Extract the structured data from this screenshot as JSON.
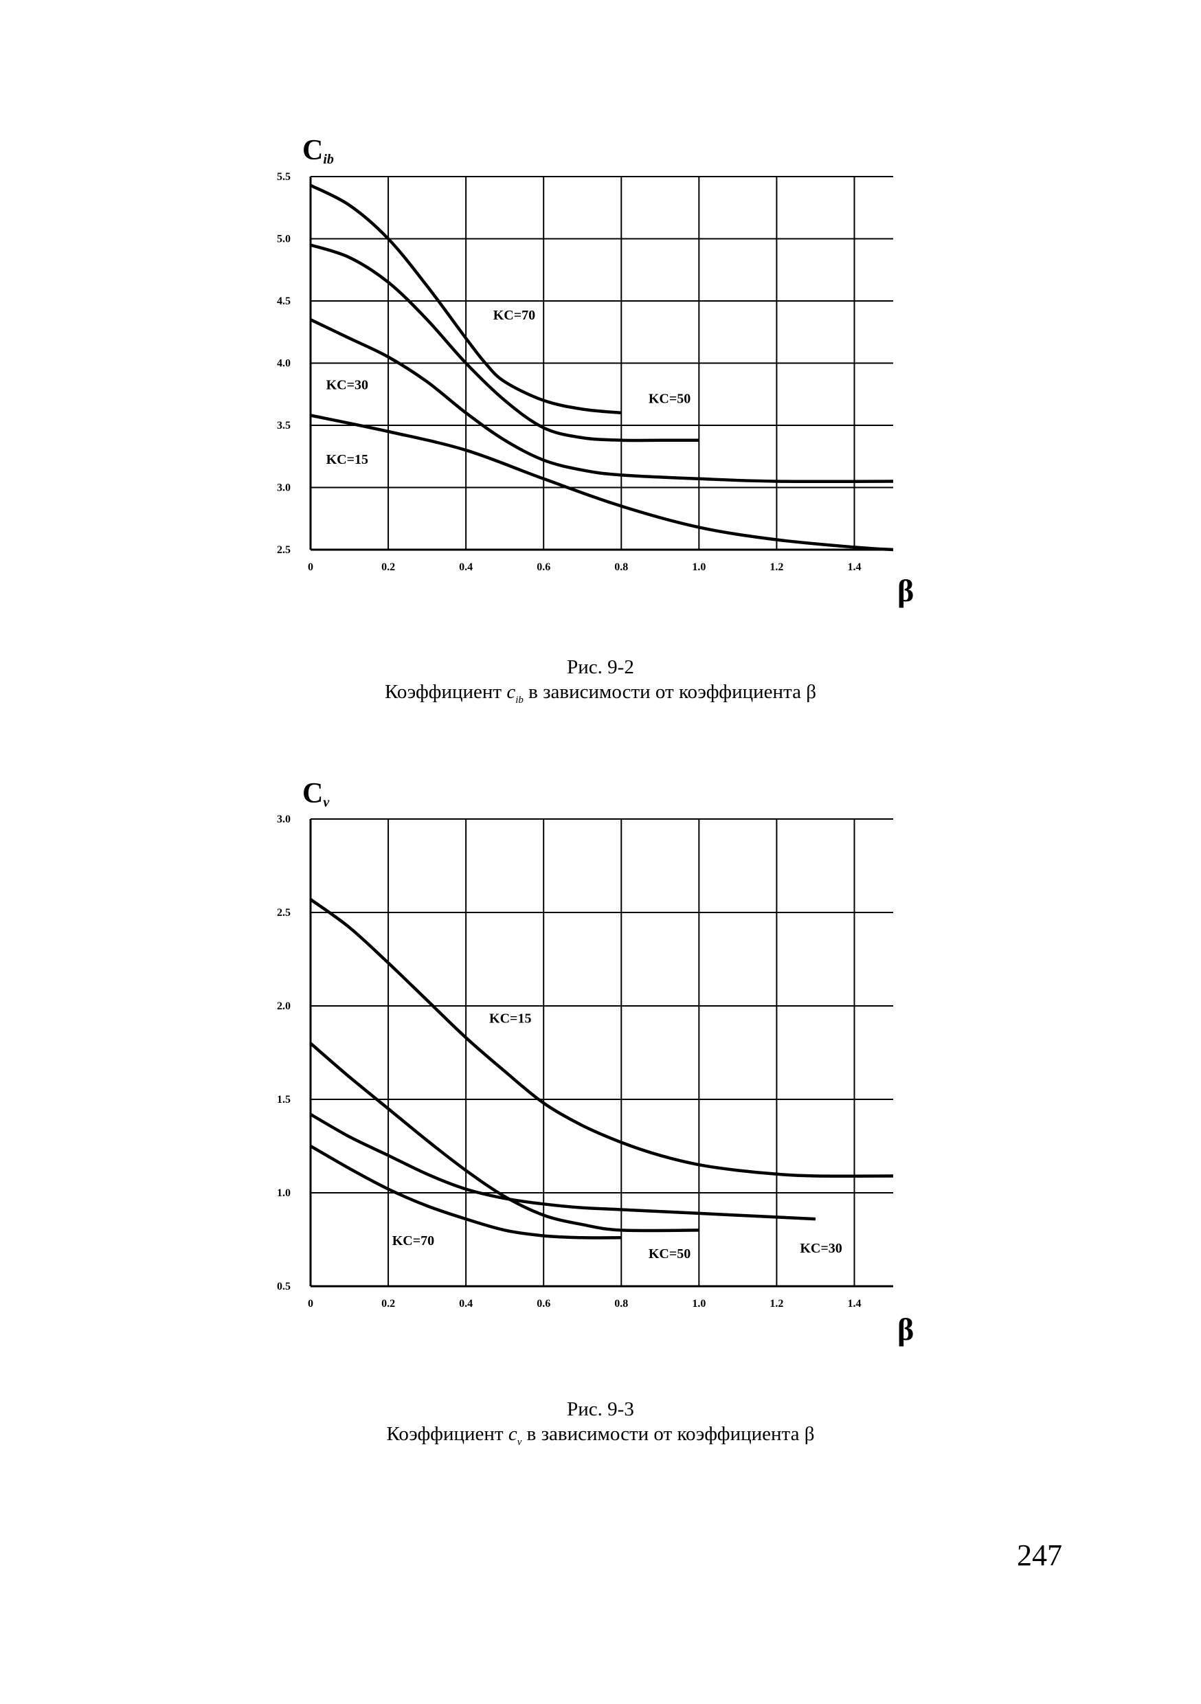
{
  "page_number": "247",
  "chart_data": [
    {
      "type": "line",
      "ylabel_main": "C",
      "ylabel_sub": "ib",
      "xlabel": "β",
      "xlim": [
        0,
        1.5
      ],
      "ylim": [
        2.5,
        5.5
      ],
      "x_ticks": [
        0,
        0.2,
        0.4,
        0.6,
        0.8,
        1.0,
        1.2,
        1.4
      ],
      "x_tick_labels": [
        "0",
        "0.2",
        "0.4",
        "0.6",
        "0.8",
        "1.0",
        "1.2",
        "1.4"
      ],
      "y_ticks": [
        2.5,
        3.0,
        3.5,
        4.0,
        4.5,
        5.0,
        5.5
      ],
      "y_tick_labels": [
        "2.5",
        "3.0",
        "3.5",
        "4.0",
        "4.5",
        "5.0",
        "5.5"
      ],
      "grid": true,
      "series": [
        {
          "name": "KC=70",
          "x": [
            0,
            0.1,
            0.2,
            0.3,
            0.4,
            0.45,
            0.5,
            0.6,
            0.7,
            0.8
          ],
          "y": [
            5.43,
            5.27,
            5.0,
            4.62,
            4.2,
            4.0,
            3.85,
            3.7,
            3.63,
            3.6
          ]
        },
        {
          "name": "KC=50",
          "x": [
            0,
            0.1,
            0.2,
            0.3,
            0.4,
            0.5,
            0.6,
            0.7,
            0.8,
            0.9,
            1.0
          ],
          "y": [
            4.95,
            4.85,
            4.65,
            4.35,
            4.0,
            3.7,
            3.48,
            3.4,
            3.38,
            3.38,
            3.38
          ]
        },
        {
          "name": "KC=30",
          "x": [
            0,
            0.1,
            0.2,
            0.3,
            0.4,
            0.5,
            0.6,
            0.7,
            0.8,
            1.0,
            1.2,
            1.5
          ],
          "y": [
            4.35,
            4.2,
            4.05,
            3.85,
            3.6,
            3.38,
            3.22,
            3.14,
            3.1,
            3.07,
            3.05,
            3.05
          ]
        },
        {
          "name": "KC=15",
          "x": [
            0,
            0.2,
            0.4,
            0.6,
            0.8,
            1.0,
            1.2,
            1.4,
            1.5
          ],
          "y": [
            3.58,
            3.45,
            3.3,
            3.07,
            2.85,
            2.68,
            2.58,
            2.52,
            2.5
          ]
        }
      ],
      "labels": [
        {
          "text": "KC=70",
          "x": 0.47,
          "y": 4.35
        },
        {
          "text": "KC=50",
          "x": 0.87,
          "y": 3.68
        },
        {
          "text": "KC=30",
          "x": 0.04,
          "y": 3.79
        },
        {
          "text": "KC=15",
          "x": 0.04,
          "y": 3.19
        }
      ],
      "caption_line1": "Рис. 9-2",
      "caption_line2_pre": "Коэффициент ",
      "caption_symbol": "c",
      "caption_symbol_sub": "ib",
      "caption_line2_post": " в зависимости от коэффициента β"
    },
    {
      "type": "line",
      "ylabel_main": "C",
      "ylabel_sub": "v",
      "xlabel": "β",
      "xlim": [
        0,
        1.5
      ],
      "ylim": [
        0.5,
        3.0
      ],
      "x_ticks": [
        0,
        0.2,
        0.4,
        0.6,
        0.8,
        1.0,
        1.2,
        1.4
      ],
      "x_tick_labels": [
        "0",
        "0.2",
        "0.4",
        "0.6",
        "0.8",
        "1.0",
        "1.2",
        "1.4"
      ],
      "y_ticks": [
        0.5,
        1.0,
        1.5,
        2.0,
        2.5,
        3.0
      ],
      "y_tick_labels": [
        "0.5",
        "1.0",
        "1.5",
        "2.0",
        "2.5",
        "3.0"
      ],
      "grid": true,
      "series": [
        {
          "name": "KC=15",
          "x": [
            0,
            0.1,
            0.2,
            0.3,
            0.4,
            0.5,
            0.6,
            0.7,
            0.8,
            0.9,
            1.0,
            1.1,
            1.2,
            1.3,
            1.5
          ],
          "y": [
            2.57,
            2.42,
            2.23,
            2.03,
            1.83,
            1.65,
            1.48,
            1.36,
            1.27,
            1.2,
            1.15,
            1.12,
            1.1,
            1.09,
            1.09
          ]
        },
        {
          "name": "KC=30",
          "x": [
            0,
            0.1,
            0.2,
            0.3,
            0.4,
            0.5,
            0.6,
            0.7,
            0.8,
            1.0,
            1.2,
            1.3
          ],
          "y": [
            1.42,
            1.3,
            1.2,
            1.1,
            1.02,
            0.97,
            0.94,
            0.92,
            0.91,
            0.89,
            0.87,
            0.86
          ]
        },
        {
          "name": "KC=50",
          "x": [
            0,
            0.1,
            0.2,
            0.3,
            0.4,
            0.5,
            0.6,
            0.7,
            0.8,
            1.0
          ],
          "y": [
            1.8,
            1.62,
            1.45,
            1.28,
            1.12,
            0.98,
            0.88,
            0.83,
            0.8,
            0.8
          ]
        },
        {
          "name": "KC=70",
          "x": [
            0,
            0.1,
            0.2,
            0.3,
            0.4,
            0.5,
            0.6,
            0.7,
            0.8
          ],
          "y": [
            1.25,
            1.13,
            1.02,
            0.93,
            0.86,
            0.8,
            0.77,
            0.76,
            0.76
          ]
        }
      ],
      "labels": [
        {
          "text": "KC=15",
          "x": 0.46,
          "y": 1.91
        },
        {
          "text": "KC=70",
          "x": 0.21,
          "y": 0.72
        },
        {
          "text": "KC=50",
          "x": 0.87,
          "y": 0.65
        },
        {
          "text": "KC=30",
          "x": 1.26,
          "y": 0.68
        }
      ],
      "caption_line1": "Рис. 9-3",
      "caption_line2_pre": "Коэффициент ",
      "caption_symbol": "c",
      "caption_symbol_sub": "v",
      "caption_line2_post": " в зависимости от коэффициента β"
    }
  ]
}
